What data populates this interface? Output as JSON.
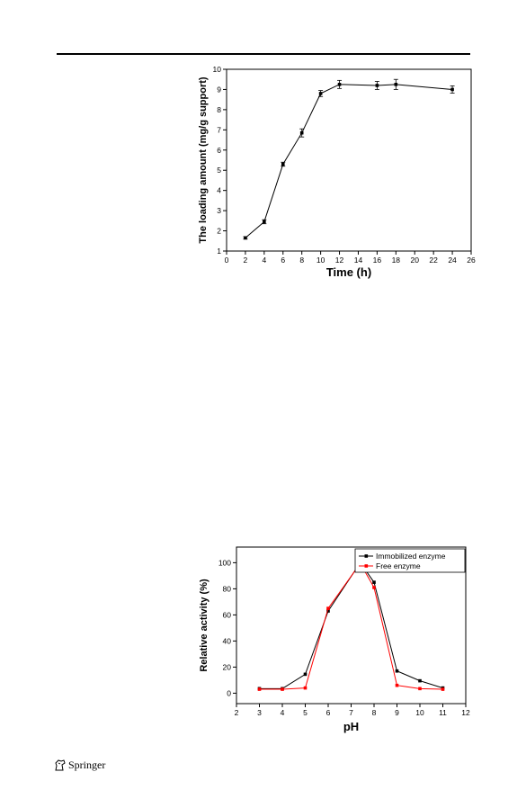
{
  "footer": {
    "publisher": "Springer",
    "publisher_icon": "springer-horse-icon"
  },
  "chart_data": [
    {
      "type": "line",
      "title": "",
      "xlabel": "Time (h)",
      "ylabel": "The loading amount (mg/g support)",
      "xlim": [
        0,
        26
      ],
      "ylim": [
        1,
        10
      ],
      "xticks": [
        0,
        2,
        4,
        6,
        8,
        10,
        12,
        14,
        16,
        18,
        20,
        22,
        24,
        26
      ],
      "yticks": [
        1,
        2,
        3,
        4,
        5,
        6,
        7,
        8,
        9,
        10
      ],
      "grid": false,
      "series": [
        {
          "color": "#000000",
          "x": [
            2,
            4,
            6,
            8,
            10,
            12,
            16,
            18,
            24
          ],
          "values": [
            1.65,
            2.45,
            5.3,
            6.85,
            8.8,
            9.25,
            9.2,
            9.25,
            9.0
          ],
          "error": [
            0.06,
            0.1,
            0.1,
            0.2,
            0.15,
            0.2,
            0.2,
            0.25,
            0.18
          ]
        }
      ]
    },
    {
      "type": "line",
      "title": "",
      "xlabel": "pH",
      "ylabel": "Relative activity (%)",
      "xlim": [
        2,
        12
      ],
      "ylim": [
        -8,
        112
      ],
      "xticks": [
        2,
        3,
        4,
        5,
        6,
        7,
        8,
        9,
        10,
        11,
        12
      ],
      "yticks": [
        0,
        20,
        40,
        60,
        80,
        100
      ],
      "grid": false,
      "legend": "top-right",
      "series": [
        {
          "name": "Immobilized enzyme",
          "color": "#000000",
          "x": [
            3,
            4,
            5,
            6,
            7.4,
            8,
            9,
            10,
            11
          ],
          "values": [
            3.5,
            3.5,
            14.5,
            63,
            100,
            85,
            17,
            9.5,
            4
          ]
        },
        {
          "name": "Free enzyme",
          "color": "#ff0000",
          "x": [
            3,
            4,
            5,
            6,
            7.4,
            8,
            9,
            10,
            11
          ],
          "values": [
            3,
            3,
            4,
            65,
            99.5,
            81,
            6,
            3.5,
            3
          ]
        }
      ]
    }
  ]
}
